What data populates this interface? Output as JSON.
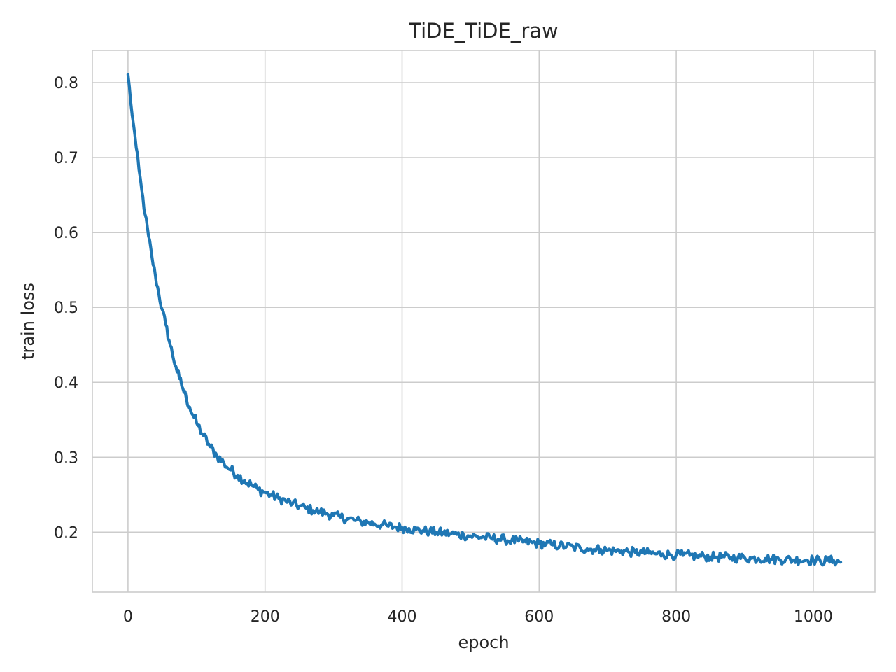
{
  "chart_data": {
    "type": "line",
    "title": "TiDE_TiDE_raw",
    "xlabel": "epoch",
    "ylabel": "train loss",
    "xlim": [
      -52,
      1090
    ],
    "ylim": [
      0.12,
      0.843
    ],
    "xticks": [
      0,
      200,
      400,
      600,
      800,
      1000
    ],
    "yticks": [
      0.2,
      0.3,
      0.4,
      0.5,
      0.6,
      0.7,
      0.8
    ],
    "grid": true,
    "legend": "none",
    "colors": {
      "series": "#1f77b4",
      "grid": "#cccccc",
      "text": "#262626"
    },
    "series": [
      {
        "x": [
          0,
          4,
          8,
          12,
          16,
          20,
          25,
          30,
          35,
          40,
          45,
          50,
          55,
          60,
          65,
          70,
          75,
          80,
          85,
          90,
          95,
          100,
          110,
          120,
          130,
          140,
          150,
          160,
          170,
          180,
          190,
          200,
          210,
          220,
          230,
          240,
          250,
          260,
          270,
          280,
          290,
          300,
          310,
          320,
          330,
          340,
          350,
          360,
          370,
          380,
          390,
          400,
          410,
          420,
          430,
          440,
          450,
          460,
          470,
          480,
          490,
          500,
          510,
          520,
          530,
          540,
          550,
          560,
          570,
          580,
          590,
          600,
          610,
          620,
          630,
          640,
          650,
          660,
          670,
          680,
          690,
          700,
          710,
          720,
          730,
          740,
          750,
          760,
          770,
          780,
          790,
          800,
          810,
          820,
          830,
          840,
          850,
          860,
          870,
          880,
          890,
          900,
          910,
          920,
          930,
          940,
          950,
          960,
          970,
          980,
          990,
          1000,
          1010,
          1020,
          1030,
          1040
        ],
        "y": [
          0.811,
          0.774,
          0.745,
          0.713,
          0.684,
          0.657,
          0.624,
          0.595,
          0.567,
          0.542,
          0.518,
          0.497,
          0.477,
          0.456,
          0.437,
          0.421,
          0.405,
          0.392,
          0.379,
          0.367,
          0.356,
          0.346,
          0.329,
          0.314,
          0.302,
          0.292,
          0.283,
          0.276,
          0.269,
          0.263,
          0.257,
          0.253,
          0.249,
          0.245,
          0.242,
          0.238,
          0.235,
          0.232,
          0.229,
          0.227,
          0.225,
          0.222,
          0.22,
          0.218,
          0.216,
          0.214,
          0.213,
          0.211,
          0.21,
          0.208,
          0.207,
          0.206,
          0.205,
          0.203,
          0.202,
          0.201,
          0.2,
          0.199,
          0.198,
          0.197,
          0.196,
          0.195,
          0.194,
          0.193,
          0.192,
          0.191,
          0.19,
          0.189,
          0.188,
          0.187,
          0.186,
          0.185,
          0.184,
          0.183,
          0.182,
          0.181,
          0.18,
          0.179,
          0.178,
          0.177,
          0.177,
          0.176,
          0.175,
          0.175,
          0.174,
          0.173,
          0.173,
          0.172,
          0.171,
          0.171,
          0.17,
          0.17,
          0.169,
          0.169,
          0.168,
          0.168,
          0.167,
          0.167,
          0.167,
          0.166,
          0.166,
          0.166,
          0.165,
          0.165,
          0.165,
          0.164,
          0.164,
          0.164,
          0.163,
          0.163,
          0.163,
          0.163,
          0.162,
          0.162,
          0.162,
          0.16
        ]
      }
    ]
  }
}
